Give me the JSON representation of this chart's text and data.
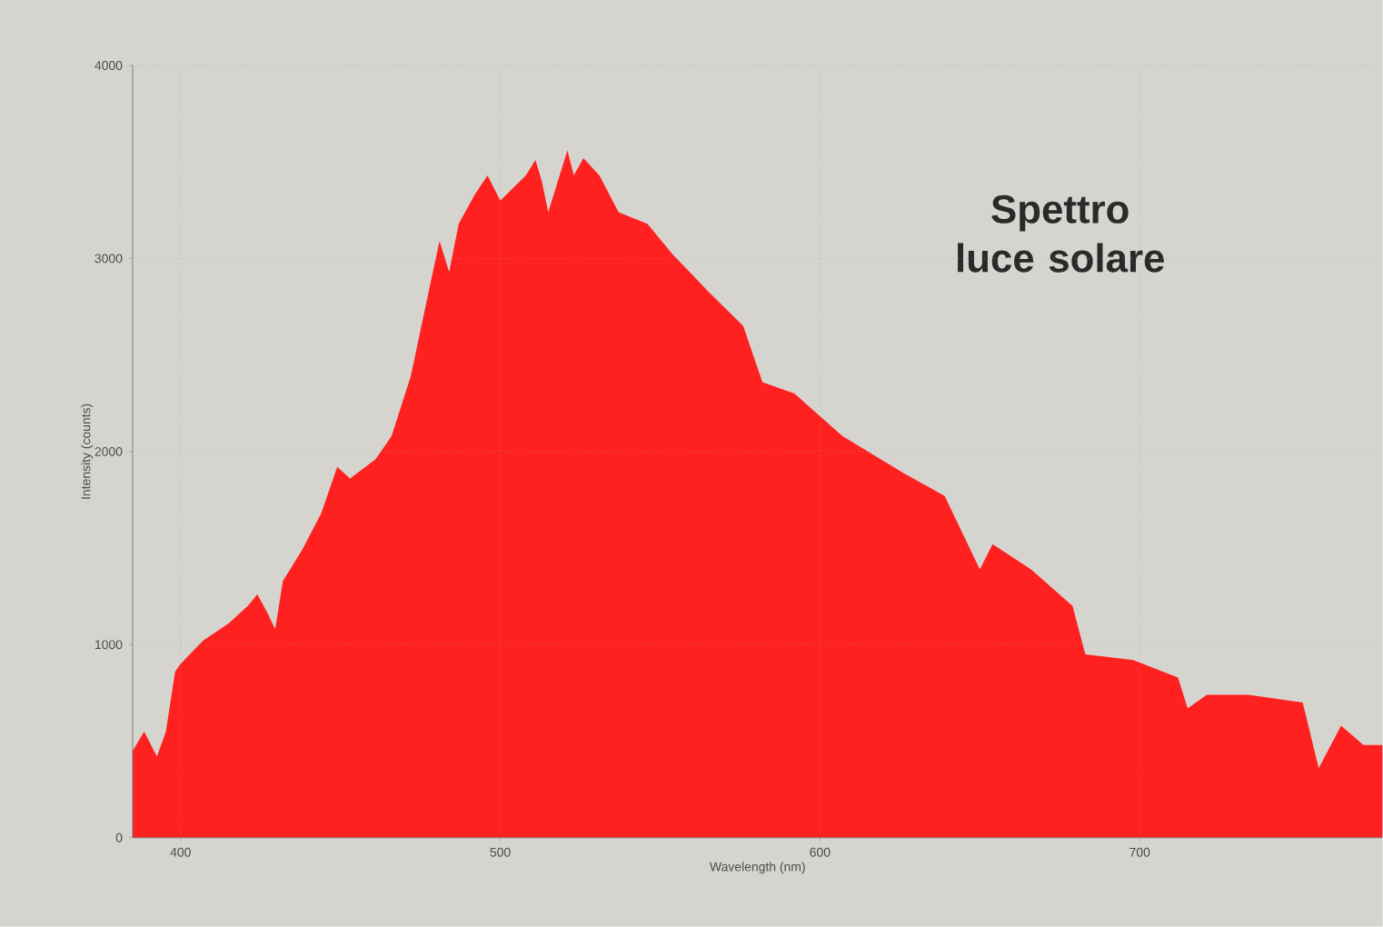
{
  "chart_data": {
    "type": "area",
    "xlabel": "Wavelength (nm)",
    "ylabel": "Intensity (counts)",
    "annotations": [
      "Spettro luce solare"
    ],
    "xlim": [
      385,
      776
    ],
    "ylim": [
      0,
      4000
    ],
    "xticks": [
      400,
      500,
      600,
      700
    ],
    "yticks": [
      0,
      1000,
      2000,
      3000,
      4000
    ],
    "grid": true,
    "series": [
      {
        "color": "#ff2020",
        "x": [
          385,
          388.6,
          392.6,
          395.4,
          398.3,
          400,
          407,
          415,
          421,
          424,
          427,
          429.6,
          432,
          438,
          444,
          449,
          453,
          461,
          466,
          472,
          478,
          481,
          484,
          487,
          492,
          496,
          500,
          508,
          511,
          513,
          515,
          521,
          523,
          526,
          531,
          537,
          546,
          554,
          565,
          576,
          582,
          592,
          607,
          626,
          639,
          650,
          654,
          666,
          679,
          683,
          698,
          712,
          715,
          721,
          734,
          751,
          756,
          763,
          770,
          776
        ],
        "values": [
          450,
          550,
          420,
          550,
          860,
          900,
          1020,
          1110,
          1200,
          1260,
          1170,
          1080,
          1330,
          1490,
          1680,
          1920,
          1860,
          1960,
          2080,
          2390,
          2860,
          3090,
          2930,
          3180,
          3330,
          3430,
          3300,
          3430,
          3510,
          3400,
          3240,
          3560,
          3430,
          3520,
          3430,
          3240,
          3180,
          3020,
          2830,
          2650,
          2360,
          2300,
          2080,
          1890,
          1770,
          1390,
          1520,
          1390,
          1200,
          950,
          920,
          830,
          670,
          740,
          740,
          700,
          360,
          580,
          480,
          480
        ]
      }
    ]
  }
}
